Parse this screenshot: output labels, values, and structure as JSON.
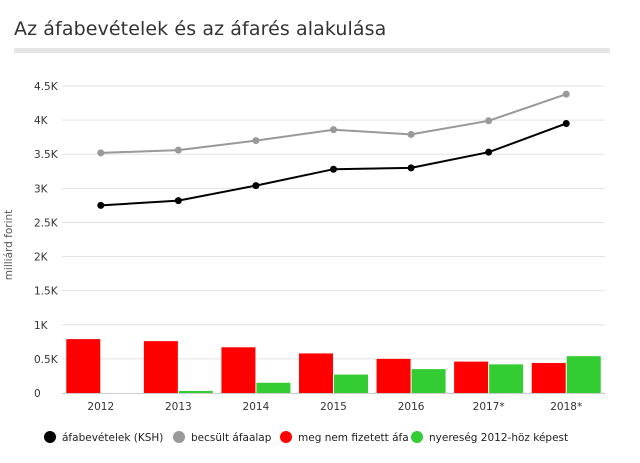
{
  "chart_data": {
    "type": "bar+line",
    "title": "Az áfabevételek és az áfarés alakulása",
    "ylabel": "milliárd forint",
    "ylim": [
      0,
      4500
    ],
    "y_ticks": [
      "0",
      "0.5K",
      "1K",
      "1.5K",
      "2K",
      "2.5K",
      "3K",
      "3.5K",
      "4K",
      "4.5K"
    ],
    "y_tick_values": [
      0,
      500,
      1000,
      1500,
      2000,
      2500,
      3000,
      3500,
      4000,
      4500
    ],
    "categories": [
      "2012",
      "2013",
      "2014",
      "2015",
      "2016",
      "2017*",
      "2018*"
    ],
    "grid": true,
    "legend_position": "bottom",
    "series": [
      {
        "name": "áfabevételek (KSH)",
        "kind": "line",
        "color": "#000000",
        "values": [
          2750,
          2820,
          3040,
          3280,
          3300,
          3530,
          3950
        ]
      },
      {
        "name": "becsült áfaalap",
        "kind": "line",
        "color": "#999999",
        "values": [
          3520,
          3560,
          3700,
          3860,
          3790,
          3990,
          4380
        ]
      },
      {
        "name": "meg nem fizetett áfa",
        "kind": "bar",
        "color": "#ff0000",
        "values": [
          790,
          760,
          670,
          580,
          500,
          460,
          440
        ]
      },
      {
        "name": "nyereség 2012-höz képest",
        "kind": "bar",
        "color": "#33cc33",
        "values": [
          0,
          30,
          150,
          270,
          350,
          420,
          540
        ]
      }
    ]
  }
}
